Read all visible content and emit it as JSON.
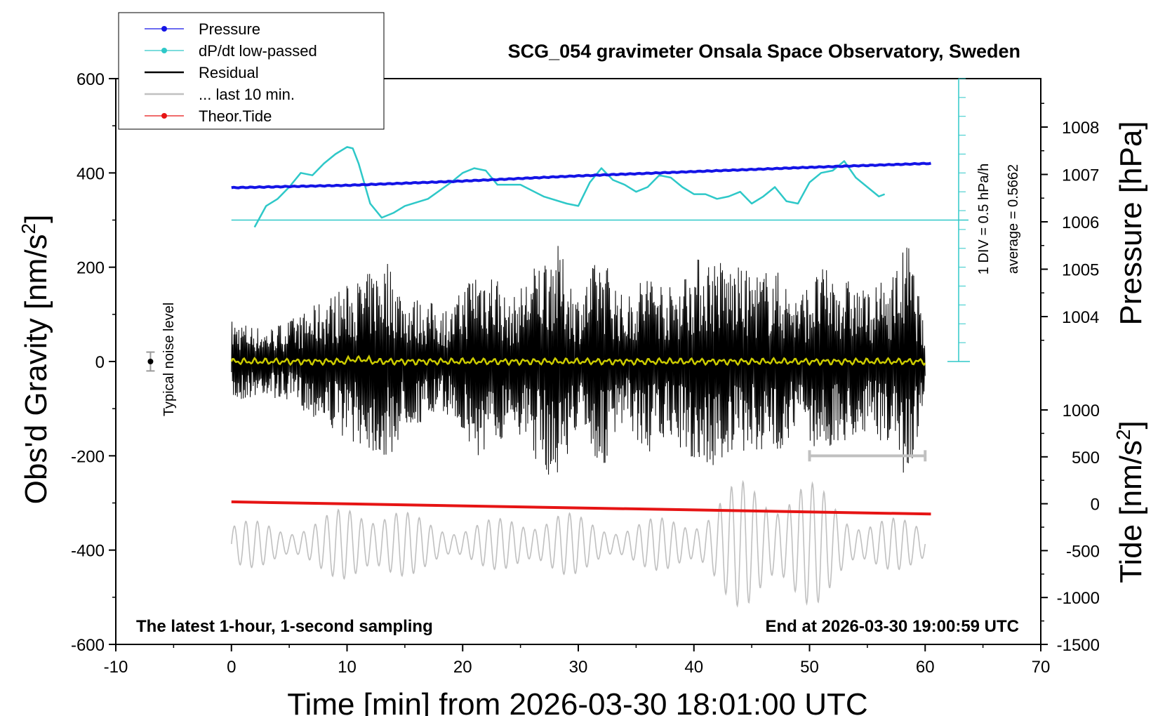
{
  "chart_data": {
    "type": "line",
    "title": "SCG_054 gravimeter Onsala Space Observatory, Sweden",
    "footer_left": "The latest 1-hour, 1-second sampling",
    "footer_right": "End at 2026-03-30 19:00:59 UTC",
    "xlabel": "Time [min] from 2026-03-30 18:01:00 UTC",
    "ylabel_left": "Obs'd Gravity [nm/s",
    "ylabel_left_sup": "2",
    "ylabel_left_tail": "]",
    "ylabel_right_top": "Pressure [hPa]",
    "ylabel_right_bottom": "Tide [nm/s",
    "ylabel_right_bottom_sup": "2",
    "ylabel_right_bottom_tail": "]",
    "xlim": [
      -10,
      70
    ],
    "ylim_left": [
      -600,
      600
    ],
    "ylim_pressure": [
      1003,
      1008.8
    ],
    "ylim_tide": [
      -1500,
      1000
    ],
    "x_ticks": [
      -10,
      0,
      10,
      20,
      30,
      40,
      50,
      60,
      70
    ],
    "y_ticks_left": [
      600,
      400,
      200,
      0,
      -200,
      -400,
      -600
    ],
    "y_ticks_pressure": [
      1008,
      1007,
      1006,
      1005,
      1004
    ],
    "y_ticks_tide": [
      1000,
      500,
      0,
      -500,
      -1000,
      -1500
    ],
    "noise_label": "Typical noise level",
    "noise_bar": {
      "x": -7,
      "y": 0,
      "err": 20
    },
    "window_bar": {
      "x_start": 50,
      "x_end": 60,
      "y": -200
    },
    "ddt_annotation_1": "1 DIV = 0.5 hPa/h",
    "ddt_annotation_2": "average = 0.5662",
    "legend": [
      {
        "label": "Pressure",
        "color": "#1414e6"
      },
      {
        "label": "dP/dt low-passed",
        "color": "#2ec8c8"
      },
      {
        "label": "Residual",
        "color": "#000000"
      },
      {
        "label": "... last 10 min.",
        "color": "#c0c0c0"
      },
      {
        "label": "Theor.Tide",
        "color": "#e61414"
      }
    ],
    "series": [
      {
        "name": "Pressure",
        "axis": "pressure",
        "color": "#1414e6",
        "x": [
          0,
          10,
          20,
          30,
          40,
          50,
          60
        ],
        "y": [
          1006.72,
          1006.77,
          1006.86,
          1006.97,
          1007.06,
          1007.15,
          1007.23
        ]
      },
      {
        "name": "dP/dt low-passed",
        "axis": "left",
        "color": "#2ec8c8",
        "x": [
          2,
          3,
          4,
          5,
          6,
          7,
          8,
          9,
          10,
          10.5,
          11,
          12,
          13,
          14,
          15,
          17,
          19,
          20,
          21,
          22,
          23,
          25,
          27,
          29,
          30,
          31,
          32,
          33,
          34,
          35,
          36,
          37,
          38,
          39,
          40,
          41,
          42,
          43,
          44,
          45,
          46,
          47,
          48,
          49,
          50,
          51,
          52,
          53,
          54,
          55,
          56,
          56.5
        ],
        "y": [
          285,
          330,
          345,
          370,
          400,
          395,
          420,
          440,
          455,
          452,
          420,
          335,
          305,
          315,
          330,
          345,
          380,
          400,
          410,
          405,
          375,
          375,
          350,
          335,
          330,
          380,
          410,
          385,
          375,
          360,
          370,
          395,
          390,
          370,
          355,
          355,
          345,
          350,
          360,
          335,
          350,
          370,
          340,
          335,
          380,
          400,
          405,
          425,
          390,
          370,
          350,
          355
        ]
      },
      {
        "name": "Residual",
        "axis": "left",
        "color": "#000000",
        "x": [
          0,
          60
        ],
        "envelope": {
          "x": [
            0,
            3,
            6,
            9,
            12,
            13.5,
            15,
            17,
            19,
            21,
            22,
            23,
            24,
            26,
            28,
            30,
            32,
            34,
            36,
            38,
            40,
            41.5,
            43,
            45,
            47,
            49,
            51,
            53,
            55,
            57,
            58.5,
            59.5,
            60
          ],
          "y": [
            90,
            70,
            100,
            150,
            190,
            220,
            140,
            130,
            110,
            210,
            205,
            190,
            120,
            200,
            260,
            140,
            240,
            130,
            200,
            160,
            220,
            230,
            210,
            190,
            200,
            140,
            200,
            180,
            150,
            180,
            260,
            140,
            50
          ]
        }
      },
      {
        "name": "Theor.Tide",
        "axis": "tide",
        "color": "#e61414",
        "x": [
          0,
          60.5
        ],
        "y": [
          20,
          -110
        ]
      },
      {
        "name": "... last 10 min.",
        "axis": "tide",
        "color": "#c0c0c0",
        "x": [
          0,
          60
        ]
      }
    ]
  }
}
